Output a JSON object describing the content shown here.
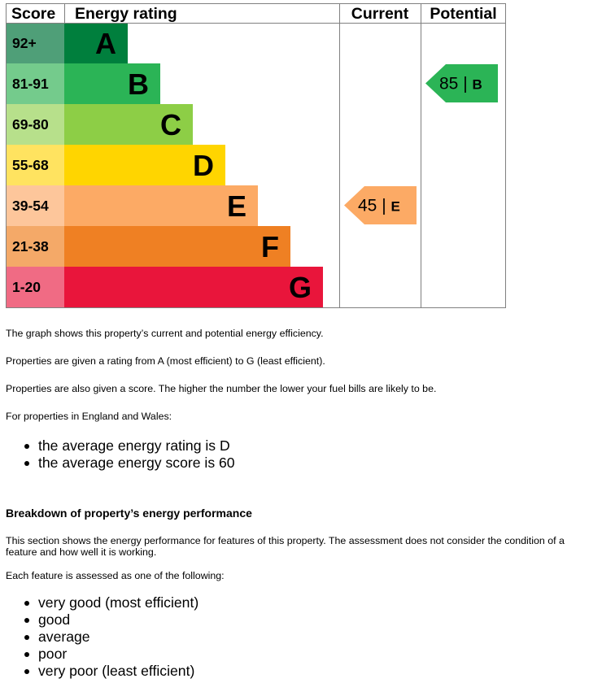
{
  "chart_data": {
    "type": "table",
    "headers": {
      "score": "Score",
      "rating": "Energy rating",
      "current": "Current",
      "potential": "Potential"
    },
    "bands": [
      {
        "letter": "A",
        "range": "92+",
        "color": "#007f3d",
        "score_color": "#4f9f78"
      },
      {
        "letter": "B",
        "range": "81-91",
        "color": "#2bb456",
        "score_color": "#74cb8c"
      },
      {
        "letter": "C",
        "range": "69-80",
        "color": "#8dce46",
        "score_color": "#b7e08b"
      },
      {
        "letter": "D",
        "range": "55-68",
        "color": "#ffd500",
        "score_color": "#ffe360"
      },
      {
        "letter": "E",
        "range": "39-54",
        "color": "#fcaa65",
        "score_color": "#fdc69b"
      },
      {
        "letter": "F",
        "range": "21-38",
        "color": "#ef8023",
        "score_color": "#f4a968"
      },
      {
        "letter": "G",
        "range": "1-20",
        "color": "#e9153b",
        "score_color": "#f06b84"
      }
    ],
    "current": {
      "score": "45",
      "band": "E",
      "color": "#fcaa65"
    },
    "potential": {
      "score": "85",
      "band": "B",
      "color": "#2bb456"
    }
  },
  "intro": {
    "p1": "The graph shows this property’s current and potential energy efficiency.",
    "p2": "Properties are given a rating from A (most efficient) to G (least efficient).",
    "p3": "Properties are also given a score. The higher the number the lower your fuel bills are likely to be.",
    "p4": "For properties in England and Wales:",
    "averages": [
      "the average energy rating is D",
      "the average energy score is 60"
    ]
  },
  "breakdown": {
    "heading": "Breakdown of property’s energy performance",
    "p1": "This section shows the energy performance for features of this property. The assessment does not consider the condition of a feature and how well it is working.",
    "p2": "Each feature is assessed as one of the following:",
    "levels": [
      "very good (most efficient)",
      "good",
      "average",
      "poor",
      "very poor (least efficient)"
    ]
  }
}
